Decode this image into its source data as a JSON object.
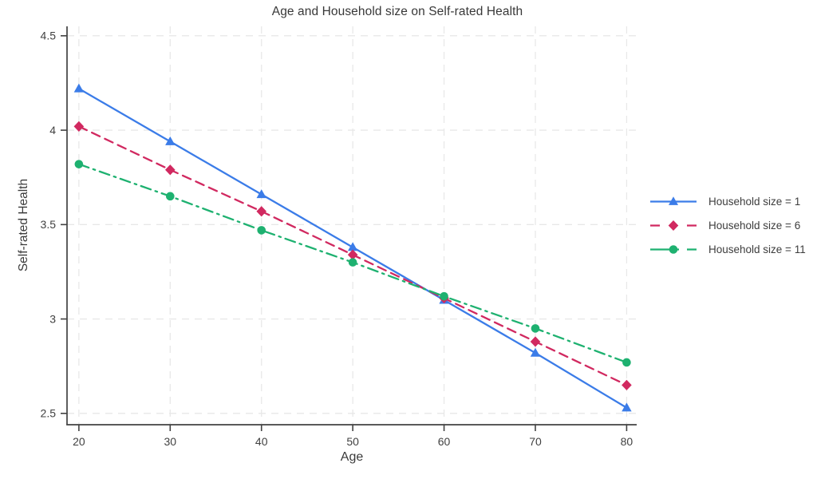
{
  "chart_data": {
    "type": "line",
    "title": "Age and Household size on Self-rated Health",
    "xlabel": "Age",
    "ylabel": "Self-rated Health",
    "x": [
      20,
      30,
      40,
      50,
      60,
      70,
      80
    ],
    "xtick_labels": [
      "20",
      "30",
      "40",
      "50",
      "60",
      "70",
      "80"
    ],
    "yticks": [
      2.5,
      3,
      3.5,
      4,
      4.5
    ],
    "ytick_labels": [
      "2.5",
      "3",
      "3.5",
      "4",
      "4.5"
    ],
    "xlim": [
      18.7,
      81.1
    ],
    "ylim": [
      2.44,
      4.55
    ],
    "grid": true,
    "grid_style": "dashed",
    "legend_position": "right-center",
    "colors": {
      "axis": "#424242",
      "grid": "#e8e8e8",
      "tick_text": "#414141",
      "label_text": "#3a3a3a"
    },
    "series": [
      {
        "name": "Household size = 1",
        "color": "#3b7ce8",
        "line_style": "solid",
        "marker": "triangle",
        "values": [
          4.22,
          3.94,
          3.66,
          3.38,
          3.1,
          2.82,
          2.53
        ]
      },
      {
        "name": "Household size = 6",
        "color": "#d12960",
        "line_style": "dashed",
        "marker": "diamond",
        "values": [
          4.02,
          3.79,
          3.57,
          3.34,
          3.11,
          2.88,
          2.65
        ]
      },
      {
        "name": "Household size = 11",
        "color": "#1eb170",
        "line_style": "dash-dot",
        "marker": "circle",
        "values": [
          3.82,
          3.65,
          3.47,
          3.3,
          3.12,
          2.95,
          2.77
        ]
      }
    ]
  }
}
